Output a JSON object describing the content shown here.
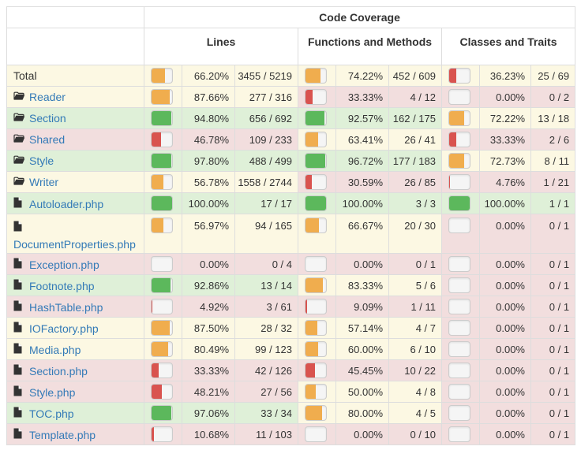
{
  "colors": {
    "high": "#5cb85c",
    "medium": "#f0ad4e",
    "low": "#d9534f"
  },
  "header": {
    "title": "Code Coverage",
    "lines": "Lines",
    "functions": "Functions and Methods",
    "classes": "Classes and Traits"
  },
  "rows": [
    {
      "name": "Total",
      "icon": "",
      "link": false,
      "lines": {
        "pct": "66.20%",
        "cnt": "3455 / 5219",
        "fill": 0.662,
        "level": "medium"
      },
      "functions": {
        "pct": "74.22%",
        "cnt": "452 / 609",
        "fill": 0.7422,
        "level": "medium"
      },
      "classes": {
        "pct": "36.23%",
        "cnt": "25 / 69",
        "fill": 0.3623,
        "level": "low"
      },
      "row_class": "warning"
    },
    {
      "name": "Reader",
      "icon": "folder-icon",
      "link": true,
      "lines": {
        "pct": "87.66%",
        "cnt": "277 / 316",
        "fill": 0.8766,
        "level": "medium"
      },
      "functions": {
        "pct": "33.33%",
        "cnt": "4 / 12",
        "fill": 0.3333,
        "level": "low"
      },
      "classes": {
        "pct": "0.00%",
        "cnt": "0 / 2",
        "fill": 0,
        "level": "low"
      },
      "row_class": "warning",
      "fn_class": "danger",
      "cl_class": "danger"
    },
    {
      "name": "Section",
      "icon": "folder-icon",
      "link": true,
      "lines": {
        "pct": "94.80%",
        "cnt": "656 / 692",
        "fill": 0.948,
        "level": "high"
      },
      "functions": {
        "pct": "92.57%",
        "cnt": "162 / 175",
        "fill": 0.9257,
        "level": "high"
      },
      "classes": {
        "pct": "72.22%",
        "cnt": "13 / 18",
        "fill": 0.7222,
        "level": "medium"
      },
      "row_class": "success",
      "cl_class": "warning"
    },
    {
      "name": "Shared",
      "icon": "folder-icon",
      "link": true,
      "lines": {
        "pct": "46.78%",
        "cnt": "109 / 233",
        "fill": 0.4678,
        "level": "low"
      },
      "functions": {
        "pct": "63.41%",
        "cnt": "26 / 41",
        "fill": 0.6341,
        "level": "medium"
      },
      "classes": {
        "pct": "33.33%",
        "cnt": "2 / 6",
        "fill": 0.3333,
        "level": "low"
      },
      "row_class": "danger",
      "fn_class": "warning"
    },
    {
      "name": "Style",
      "icon": "folder-icon",
      "link": true,
      "lines": {
        "pct": "97.80%",
        "cnt": "488 / 499",
        "fill": 0.978,
        "level": "high"
      },
      "functions": {
        "pct": "96.72%",
        "cnt": "177 / 183",
        "fill": 0.9672,
        "level": "high"
      },
      "classes": {
        "pct": "72.73%",
        "cnt": "8 / 11",
        "fill": 0.7273,
        "level": "medium"
      },
      "row_class": "success",
      "cl_class": "warning"
    },
    {
      "name": "Writer",
      "icon": "folder-icon",
      "link": true,
      "lines": {
        "pct": "56.78%",
        "cnt": "1558 / 2744",
        "fill": 0.5678,
        "level": "medium"
      },
      "functions": {
        "pct": "30.59%",
        "cnt": "26 / 85",
        "fill": 0.3059,
        "level": "low"
      },
      "classes": {
        "pct": "4.76%",
        "cnt": "1 / 21",
        "fill": 0.0476,
        "level": "low"
      },
      "row_class": "warning",
      "fn_class": "danger",
      "cl_class": "danger"
    },
    {
      "name": "Autoloader.php",
      "icon": "file-icon",
      "link": true,
      "lines": {
        "pct": "100.00%",
        "cnt": "17 / 17",
        "fill": 1,
        "level": "high"
      },
      "functions": {
        "pct": "100.00%",
        "cnt": "3 / 3",
        "fill": 1,
        "level": "high"
      },
      "classes": {
        "pct": "100.00%",
        "cnt": "1 / 1",
        "fill": 1,
        "level": "high"
      },
      "row_class": "success"
    },
    {
      "name": "DocumentProperties.php",
      "icon": "file-icon",
      "link": true,
      "tall": true,
      "lines": {
        "pct": "56.97%",
        "cnt": "94 / 165",
        "fill": 0.5697,
        "level": "medium"
      },
      "functions": {
        "pct": "66.67%",
        "cnt": "20 / 30",
        "fill": 0.6667,
        "level": "medium"
      },
      "classes": {
        "pct": "0.00%",
        "cnt": "0 / 1",
        "fill": 0,
        "level": "low"
      },
      "row_class": "warning",
      "cl_class": "danger"
    },
    {
      "name": "Exception.php",
      "icon": "file-icon",
      "link": true,
      "lines": {
        "pct": "0.00%",
        "cnt": "0 / 4",
        "fill": 0,
        "level": "low"
      },
      "functions": {
        "pct": "0.00%",
        "cnt": "0 / 1",
        "fill": 0,
        "level": "low"
      },
      "classes": {
        "pct": "0.00%",
        "cnt": "0 / 1",
        "fill": 0,
        "level": "low"
      },
      "row_class": "danger"
    },
    {
      "name": "Footnote.php",
      "icon": "file-icon",
      "link": true,
      "lines": {
        "pct": "92.86%",
        "cnt": "13 / 14",
        "fill": 0.9286,
        "level": "high"
      },
      "functions": {
        "pct": "83.33%",
        "cnt": "5 / 6",
        "fill": 0.8333,
        "level": "medium"
      },
      "classes": {
        "pct": "0.00%",
        "cnt": "0 / 1",
        "fill": 0,
        "level": "low"
      },
      "row_class": "success",
      "fn_class": "warning",
      "cl_class": "danger"
    },
    {
      "name": "HashTable.php",
      "icon": "file-icon",
      "link": true,
      "lines": {
        "pct": "4.92%",
        "cnt": "3 / 61",
        "fill": 0.0492,
        "level": "low"
      },
      "functions": {
        "pct": "9.09%",
        "cnt": "1 / 11",
        "fill": 0.0909,
        "level": "low"
      },
      "classes": {
        "pct": "0.00%",
        "cnt": "0 / 1",
        "fill": 0,
        "level": "low"
      },
      "row_class": "danger"
    },
    {
      "name": "IOFactory.php",
      "icon": "file-icon",
      "link": true,
      "lines": {
        "pct": "87.50%",
        "cnt": "28 / 32",
        "fill": 0.875,
        "level": "medium"
      },
      "functions": {
        "pct": "57.14%",
        "cnt": "4 / 7",
        "fill": 0.5714,
        "level": "medium"
      },
      "classes": {
        "pct": "0.00%",
        "cnt": "0 / 1",
        "fill": 0,
        "level": "low"
      },
      "row_class": "warning",
      "cl_class": "danger"
    },
    {
      "name": "Media.php",
      "icon": "file-icon",
      "link": true,
      "lines": {
        "pct": "80.49%",
        "cnt": "99 / 123",
        "fill": 0.8049,
        "level": "medium"
      },
      "functions": {
        "pct": "60.00%",
        "cnt": "6 / 10",
        "fill": 0.6,
        "level": "medium"
      },
      "classes": {
        "pct": "0.00%",
        "cnt": "0 / 1",
        "fill": 0,
        "level": "low"
      },
      "row_class": "warning",
      "cl_class": "danger"
    },
    {
      "name": "Section.php",
      "icon": "file-icon",
      "link": true,
      "lines": {
        "pct": "33.33%",
        "cnt": "42 / 126",
        "fill": 0.3333,
        "level": "low"
      },
      "functions": {
        "pct": "45.45%",
        "cnt": "10 / 22",
        "fill": 0.4545,
        "level": "low"
      },
      "classes": {
        "pct": "0.00%",
        "cnt": "0 / 1",
        "fill": 0,
        "level": "low"
      },
      "row_class": "danger"
    },
    {
      "name": "Style.php",
      "icon": "file-icon",
      "link": true,
      "lines": {
        "pct": "48.21%",
        "cnt": "27 / 56",
        "fill": 0.4821,
        "level": "low"
      },
      "functions": {
        "pct": "50.00%",
        "cnt": "4 / 8",
        "fill": 0.5,
        "level": "medium"
      },
      "classes": {
        "pct": "0.00%",
        "cnt": "0 / 1",
        "fill": 0,
        "level": "low"
      },
      "row_class": "danger",
      "fn_class": "warning"
    },
    {
      "name": "TOC.php",
      "icon": "file-icon",
      "link": true,
      "lines": {
        "pct": "97.06%",
        "cnt": "33 / 34",
        "fill": 0.9706,
        "level": "high"
      },
      "functions": {
        "pct": "80.00%",
        "cnt": "4 / 5",
        "fill": 0.8,
        "level": "medium"
      },
      "classes": {
        "pct": "0.00%",
        "cnt": "0 / 1",
        "fill": 0,
        "level": "low"
      },
      "row_class": "success",
      "fn_class": "warning",
      "cl_class": "danger"
    },
    {
      "name": "Template.php",
      "icon": "file-icon",
      "link": true,
      "lines": {
        "pct": "10.68%",
        "cnt": "11 / 103",
        "fill": 0.1068,
        "level": "low"
      },
      "functions": {
        "pct": "0.00%",
        "cnt": "0 / 10",
        "fill": 0,
        "level": "low"
      },
      "classes": {
        "pct": "0.00%",
        "cnt": "0 / 1",
        "fill": 0,
        "level": "low"
      },
      "row_class": "danger"
    }
  ]
}
